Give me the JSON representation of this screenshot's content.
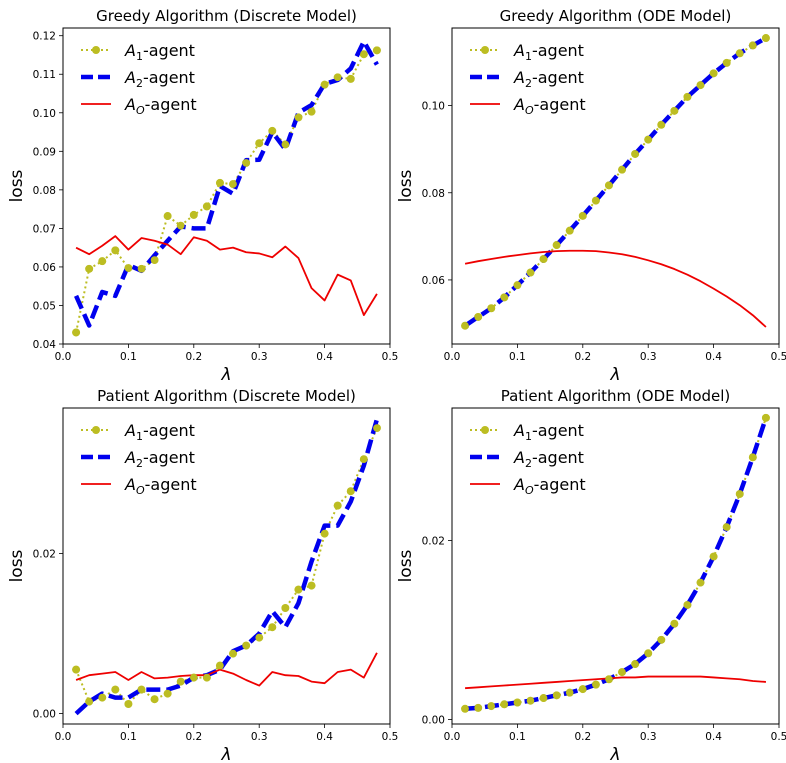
{
  "chart_data": [
    {
      "type": "line",
      "title": "Greedy Algorithm (Discrete Model)",
      "xlabel": "λ",
      "ylabel": "loss",
      "xlim": [
        0.0,
        0.5
      ],
      "ylim": [
        0.04,
        0.122
      ],
      "xticks": [
        "0.0",
        "0.1",
        "0.2",
        "0.3",
        "0.4",
        "0.5"
      ],
      "yticks": [
        "0.04",
        "0.05",
        "0.06",
        "0.07",
        "0.08",
        "0.09",
        "0.10",
        "0.11",
        "0.12"
      ],
      "legend_position": "upper-left",
      "x": [
        0.02,
        0.04,
        0.06,
        0.08,
        0.1,
        0.12,
        0.14,
        0.16,
        0.18,
        0.2,
        0.22,
        0.24,
        0.26,
        0.28,
        0.3,
        0.32,
        0.34,
        0.36,
        0.38,
        0.4,
        0.42,
        0.44,
        0.46,
        0.48
      ],
      "series": [
        {
          "name_base": "A",
          "name_sub": "1",
          "name_suffix": "-agent",
          "style": "dotted-markers",
          "color": "#bcbd22",
          "values": [
            0.043,
            0.0595,
            0.0615,
            0.0643,
            0.0597,
            0.0595,
            0.0618,
            0.0732,
            0.0707,
            0.0735,
            0.0757,
            0.0818,
            0.0815,
            0.087,
            0.0921,
            0.0953,
            0.0918,
            0.0988,
            0.1003,
            0.1073,
            0.1092,
            0.1088,
            0.1152,
            0.1162
          ]
        },
        {
          "name_base": "A",
          "name_sub": "2",
          "name_suffix": "-agent",
          "style": "dashed",
          "color": "#0000ee",
          "values": [
            0.0525,
            0.0448,
            0.0535,
            0.0525,
            0.0605,
            0.059,
            0.063,
            0.0668,
            0.0705,
            0.07,
            0.07,
            0.081,
            0.079,
            0.0877,
            0.0878,
            0.095,
            0.0905,
            0.1,
            0.102,
            0.1075,
            0.1085,
            0.1115,
            0.1185,
            0.1125
          ]
        },
        {
          "name_base": "A",
          "name_sub": "O",
          "name_suffix": "-agent",
          "style": "solid",
          "color": "#ee0000",
          "values": [
            0.065,
            0.0633,
            0.0655,
            0.068,
            0.0645,
            0.0675,
            0.0668,
            0.0658,
            0.0633,
            0.0677,
            0.0668,
            0.0645,
            0.065,
            0.0638,
            0.0635,
            0.0625,
            0.0653,
            0.0623,
            0.0545,
            0.0513,
            0.058,
            0.0565,
            0.0475,
            0.053
          ]
        }
      ]
    },
    {
      "type": "line",
      "title": "Greedy Algorithm (ODE Model)",
      "xlabel": "λ",
      "ylabel": "loss",
      "xlim": [
        0.0,
        0.5
      ],
      "ylim": [
        0.0453,
        0.1178
      ],
      "xticks": [
        "0.0",
        "0.1",
        "0.2",
        "0.3",
        "0.4",
        "0.5"
      ],
      "yticks": [
        "0.06",
        "0.08",
        "0.10"
      ],
      "legend_position": "upper-left",
      "x": [
        0.02,
        0.04,
        0.06,
        0.08,
        0.1,
        0.12,
        0.14,
        0.16,
        0.18,
        0.2,
        0.22,
        0.24,
        0.26,
        0.28,
        0.3,
        0.32,
        0.34,
        0.36,
        0.38,
        0.4,
        0.42,
        0.44,
        0.46,
        0.48
      ],
      "series": [
        {
          "name_base": "A",
          "name_sub": "1",
          "name_suffix": "-agent",
          "style": "dotted-markers",
          "color": "#bcbd22",
          "values": [
            0.0495,
            0.0515,
            0.0535,
            0.056,
            0.0588,
            0.0617,
            0.0648,
            0.068,
            0.0713,
            0.0747,
            0.0782,
            0.0817,
            0.0853,
            0.0889,
            0.0922,
            0.0956,
            0.0988,
            0.102,
            0.1047,
            0.1074,
            0.1098,
            0.112,
            0.1138,
            0.1155
          ]
        },
        {
          "name_base": "A",
          "name_sub": "2",
          "name_suffix": "-agent",
          "style": "dashed",
          "color": "#0000ee",
          "values": [
            0.0495,
            0.0515,
            0.0535,
            0.056,
            0.0588,
            0.0617,
            0.0648,
            0.068,
            0.0713,
            0.0747,
            0.0782,
            0.0817,
            0.0853,
            0.0889,
            0.0922,
            0.0956,
            0.0988,
            0.102,
            0.1047,
            0.1074,
            0.1098,
            0.112,
            0.1138,
            0.1155
          ]
        },
        {
          "name_base": "A",
          "name_sub": "O",
          "name_suffix": "-agent",
          "style": "solid",
          "color": "#ee0000",
          "values": [
            0.0637,
            0.0643,
            0.0648,
            0.0653,
            0.0657,
            0.0661,
            0.0664,
            0.0666,
            0.0667,
            0.0667,
            0.0666,
            0.0663,
            0.0659,
            0.0653,
            0.0645,
            0.0636,
            0.0625,
            0.0612,
            0.0597,
            0.058,
            0.0562,
            0.0542,
            0.0519,
            0.0492
          ]
        }
      ]
    },
    {
      "type": "line",
      "title": "Patient Algorithm (Discrete Model)",
      "xlabel": "λ",
      "ylabel": "loss",
      "xlim": [
        0.0,
        0.5
      ],
      "ylim": [
        -0.0013,
        0.0382
      ],
      "xticks": [
        "0.0",
        "0.1",
        "0.2",
        "0.3",
        "0.4",
        "0.5"
      ],
      "yticks": [
        "0.00",
        "0.02"
      ],
      "legend_position": "upper-left",
      "x": [
        0.02,
        0.04,
        0.06,
        0.08,
        0.1,
        0.12,
        0.14,
        0.16,
        0.18,
        0.2,
        0.22,
        0.24,
        0.26,
        0.28,
        0.3,
        0.32,
        0.34,
        0.36,
        0.38,
        0.4,
        0.42,
        0.44,
        0.46,
        0.48
      ],
      "series": [
        {
          "name_base": "A",
          "name_sub": "1",
          "name_suffix": "-agent",
          "style": "dotted-markers",
          "color": "#bcbd22",
          "values": [
            0.0055,
            0.0015,
            0.002,
            0.003,
            0.0012,
            0.003,
            0.0018,
            0.0025,
            0.004,
            0.0045,
            0.0045,
            0.006,
            0.0075,
            0.0085,
            0.0095,
            0.0108,
            0.0132,
            0.0155,
            0.016,
            0.0225,
            0.026,
            0.0278,
            0.0318,
            0.0357
          ]
        },
        {
          "name_base": "A",
          "name_sub": "2",
          "name_suffix": "-agent",
          "style": "dashed",
          "color": "#0000ee",
          "values": [
            0.0,
            0.0015,
            0.0025,
            0.002,
            0.002,
            0.003,
            0.003,
            0.003,
            0.0035,
            0.0045,
            0.0048,
            0.0055,
            0.0078,
            0.0085,
            0.01,
            0.0128,
            0.0108,
            0.0138,
            0.019,
            0.0235,
            0.0235,
            0.0265,
            0.031,
            0.0368
          ]
        },
        {
          "name_base": "A",
          "name_sub": "O",
          "name_suffix": "-agent",
          "style": "solid",
          "color": "#ee0000",
          "values": [
            0.0042,
            0.0048,
            0.005,
            0.0052,
            0.0042,
            0.0052,
            0.0044,
            0.0045,
            0.0047,
            0.0048,
            0.0048,
            0.0055,
            0.005,
            0.0042,
            0.0035,
            0.0052,
            0.0048,
            0.0047,
            0.004,
            0.0038,
            0.0052,
            0.0055,
            0.0045,
            0.0076
          ]
        }
      ]
    },
    {
      "type": "line",
      "title": "Patient Algorithm (ODE Model)",
      "xlabel": "λ",
      "ylabel": "loss",
      "xlim": [
        0.0,
        0.5
      ],
      "ylim": [
        -0.0005,
        0.0348
      ],
      "xticks": [
        "0.0",
        "0.1",
        "0.2",
        "0.3",
        "0.4",
        "0.5"
      ],
      "yticks": [
        "0.00",
        "0.02"
      ],
      "legend_position": "upper-left",
      "x": [
        0.02,
        0.04,
        0.06,
        0.08,
        0.1,
        0.12,
        0.14,
        0.16,
        0.18,
        0.2,
        0.22,
        0.24,
        0.26,
        0.28,
        0.3,
        0.32,
        0.34,
        0.36,
        0.38,
        0.4,
        0.42,
        0.44,
        0.46,
        0.48
      ],
      "series": [
        {
          "name_base": "A",
          "name_sub": "1",
          "name_suffix": "-agent",
          "style": "dotted-markers",
          "color": "#bcbd22",
          "values": [
            0.0012,
            0.0013,
            0.0015,
            0.0017,
            0.0019,
            0.0021,
            0.0024,
            0.0027,
            0.003,
            0.0034,
            0.0039,
            0.0045,
            0.0053,
            0.0062,
            0.0074,
            0.0089,
            0.0107,
            0.0128,
            0.0153,
            0.0182,
            0.0215,
            0.0252,
            0.0293,
            0.0337
          ]
        },
        {
          "name_base": "A",
          "name_sub": "2",
          "name_suffix": "-agent",
          "style": "dashed",
          "color": "#0000ee",
          "values": [
            0.0012,
            0.0013,
            0.0015,
            0.0017,
            0.0019,
            0.0021,
            0.0024,
            0.0027,
            0.003,
            0.0034,
            0.0039,
            0.0045,
            0.0053,
            0.0062,
            0.0074,
            0.0089,
            0.0107,
            0.0128,
            0.0153,
            0.0182,
            0.0215,
            0.0252,
            0.0293,
            0.0337
          ]
        },
        {
          "name_base": "A",
          "name_sub": "O",
          "name_suffix": "-agent",
          "style": "solid",
          "color": "#ee0000",
          "values": [
            0.0035,
            0.0036,
            0.0037,
            0.0038,
            0.0039,
            0.004,
            0.0041,
            0.0042,
            0.0043,
            0.0044,
            0.0045,
            0.0046,
            0.0047,
            0.0047,
            0.0048,
            0.0048,
            0.0048,
            0.0048,
            0.0048,
            0.0047,
            0.0046,
            0.0045,
            0.0043,
            0.0042
          ]
        }
      ]
    }
  ]
}
